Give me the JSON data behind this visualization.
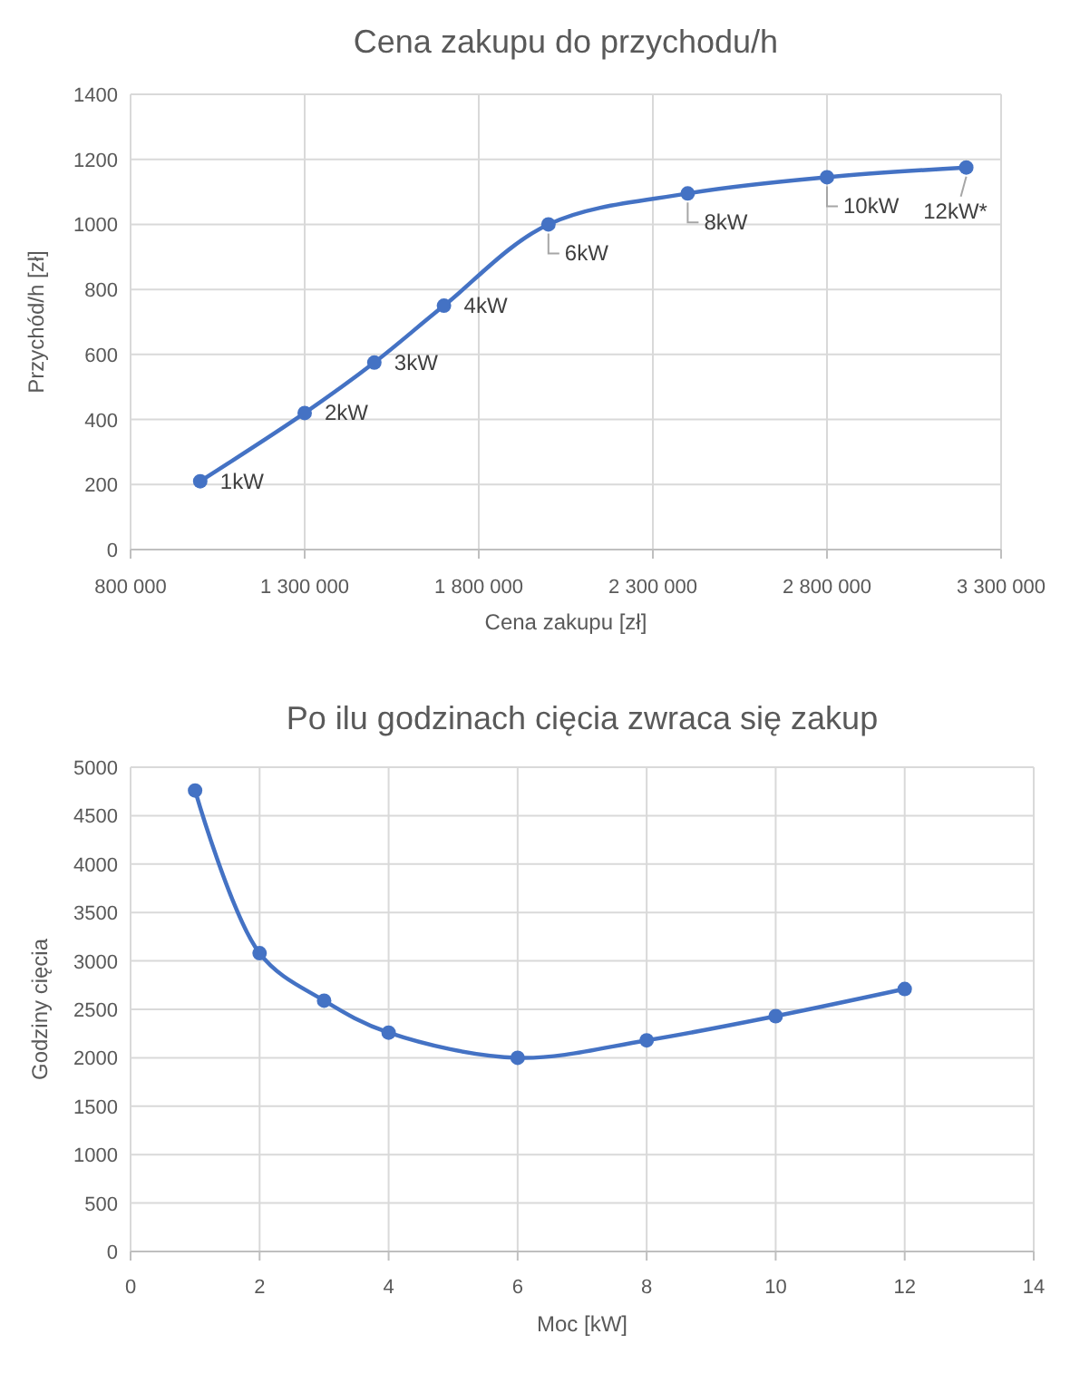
{
  "chart_data": [
    {
      "type": "line",
      "title": "Cena zakupu do przychodu/h",
      "xlabel": "Cena zakupu [zł]",
      "ylabel": "Przychód/h [zł]",
      "x": [
        1000000,
        1300000,
        1500000,
        1700000,
        2000000,
        2400000,
        2800000,
        3200000
      ],
      "series": [
        {
          "color": "#4472c4",
          "values": [
            210,
            420,
            575,
            750,
            1000,
            1095,
            1145,
            1175
          ]
        }
      ],
      "xlim": [
        800000,
        3300000
      ],
      "xticks": [
        {
          "value": 800000,
          "label": "800 000"
        },
        {
          "value": 1300000,
          "label": "1 300 000"
        },
        {
          "value": 1800000,
          "label": "1 800 000"
        },
        {
          "value": 2300000,
          "label": "2 300 000"
        },
        {
          "value": 2800000,
          "label": "2 800 000"
        },
        {
          "value": 3300000,
          "label": "3 300 000"
        }
      ],
      "ylim": [
        0,
        1400
      ],
      "yticks": [
        0,
        200,
        400,
        600,
        800,
        1000,
        1200,
        1400
      ],
      "grid": true,
      "marker": "circle",
      "line_style": "solid",
      "annotations": [
        {
          "text": "1kW",
          "x": 1000000,
          "y": 210
        },
        {
          "text": "2kW",
          "x": 1300000,
          "y": 420
        },
        {
          "text": "3kW",
          "x": 1500000,
          "y": 575
        },
        {
          "text": "4kW",
          "x": 1700000,
          "y": 750
        },
        {
          "text": "6kW",
          "x": 2000000,
          "y": 1000
        },
        {
          "text": "8kW",
          "x": 2400000,
          "y": 1095
        },
        {
          "text": "10kW",
          "x": 2800000,
          "y": 1145
        },
        {
          "text": "12kW*",
          "x": 3200000,
          "y": 1175
        }
      ]
    },
    {
      "type": "line",
      "title": "Po ilu godzinach cięcia zwraca się zakup",
      "xlabel": "Moc [kW]",
      "ylabel": "Godziny cięcia",
      "x": [
        1,
        2,
        3,
        4,
        6,
        8,
        10,
        12
      ],
      "series": [
        {
          "color": "#4472c4",
          "values": [
            4760,
            3080,
            2590,
            2260,
            2000,
            2180,
            2430,
            2710
          ]
        }
      ],
      "xlim": [
        0,
        14
      ],
      "xticks": [
        0,
        2,
        4,
        6,
        8,
        10,
        12,
        14
      ],
      "ylim": [
        0,
        5000
      ],
      "yticks": [
        0,
        500,
        1000,
        1500,
        2000,
        2500,
        3000,
        3500,
        4000,
        4500,
        5000
      ],
      "grid": true,
      "marker": "circle",
      "line_style": "solid"
    }
  ]
}
